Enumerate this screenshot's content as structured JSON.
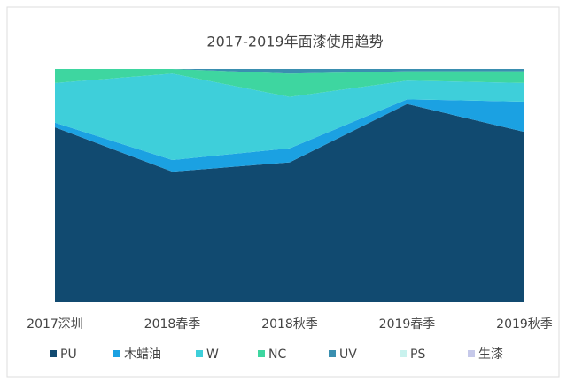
{
  "chart_data": {
    "type": "stacked_area",
    "title": "2017-2019年面漆使用趋势",
    "categories": [
      "2017深圳",
      "2018春季",
      "2018秋季",
      "2019春季",
      "2019秋季"
    ],
    "series": [
      {
        "name": "PU",
        "color": "#114a70",
        "values": [
          75,
          56,
          60,
          85,
          73
        ]
      },
      {
        "name": "木蜡油",
        "color": "#1ba1e2",
        "values": [
          2,
          5,
          6,
          2,
          13
        ]
      },
      {
        "name": "W",
        "color": "#3ecfda",
        "values": [
          17,
          37,
          22,
          8,
          8
        ]
      },
      {
        "name": "NC",
        "color": "#3ed6a0",
        "values": [
          6,
          2,
          10,
          4,
          5
        ]
      },
      {
        "name": "UV",
        "color": "#3a8fb0",
        "values": [
          0,
          0,
          2,
          1,
          1
        ]
      },
      {
        "name": "PS",
        "color": "#c9f2ee",
        "values": [
          0,
          0,
          0,
          0,
          0
        ]
      },
      {
        "name": "生漆",
        "color": "#c6c9ea",
        "values": [
          0,
          0,
          0,
          0,
          0
        ]
      }
    ],
    "ylim": [
      0,
      100
    ],
    "legend": "bottom"
  }
}
